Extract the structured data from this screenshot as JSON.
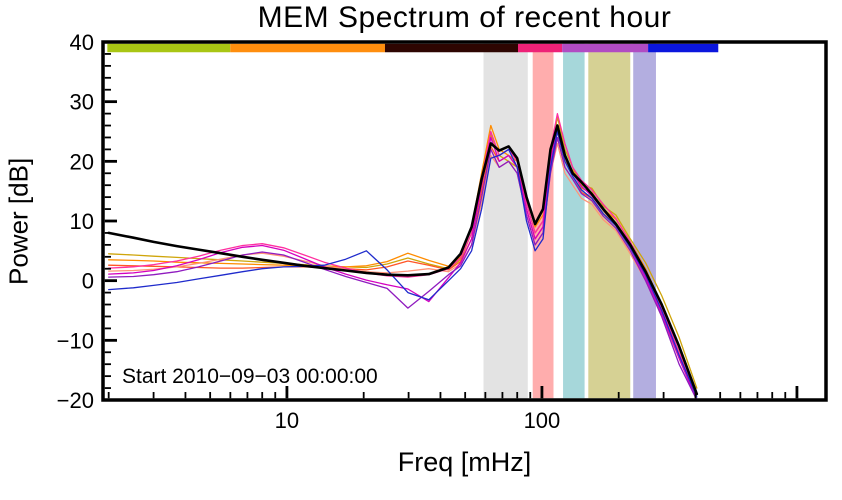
{
  "chart_data": {
    "type": "line",
    "title": "MEM Spectrum of recent hour",
    "xlabel": "Freq [mHz]",
    "ylabel": "Power [dB]",
    "annotation": "Start 2010−09−03 00:00:00",
    "xscale": "log",
    "xlim": [
      1.9,
      1300
    ],
    "ylim": [
      -20,
      40
    ],
    "grid": false,
    "legend": "none",
    "yticks": [
      [
        40,
        "40"
      ],
      [
        30,
        "30"
      ],
      [
        20,
        "20"
      ],
      [
        10,
        "10"
      ],
      [
        0,
        "0"
      ],
      [
        -10,
        "−10"
      ],
      [
        -20,
        "−20"
      ]
    ],
    "ytick_minor_step": 2,
    "xticks": [
      [
        10,
        "10"
      ],
      [
        100,
        "100"
      ],
      [
        1000,
        ""
      ]
    ],
    "x": [
      2,
      2.5,
      3,
      3.7,
      4.5,
      5.5,
      6.7,
      8,
      9.7,
      11.7,
      14,
      17,
      20.5,
      24.7,
      29.8,
      36,
      43,
      48,
      53,
      58,
      63,
      68,
      74,
      80,
      87,
      94,
      101,
      108,
      115,
      123,
      132,
      143,
      157,
      174,
      195,
      222,
      255,
      295,
      345,
      405
    ],
    "series": [
      {
        "name": "gold",
        "color": "#cfa50a",
        "width": 1.3,
        "values": [
          4.5,
          4.3,
          4.1,
          3.9,
          3.7,
          3.5,
          3.3,
          3.1,
          2.9,
          2.7,
          2.5,
          2.3,
          2.2,
          2.8,
          3.8,
          2.8,
          2.0,
          3.5,
          8,
          16,
          24.5,
          21,
          20,
          19,
          13,
          8,
          10,
          20,
          27.5,
          22,
          19,
          16,
          15.5,
          12.5,
          11,
          7,
          3,
          -2.5,
          -9.5,
          -18
        ]
      },
      {
        "name": "orange",
        "color": "#ff8c00",
        "width": 1.3,
        "values": [
          3.5,
          3.4,
          3.3,
          3.1,
          3,
          2.9,
          2.8,
          2.7,
          2.6,
          2.5,
          2.4,
          2.3,
          2.5,
          3.2,
          4.6,
          3.4,
          2.4,
          4,
          9,
          18,
          26,
          22,
          21,
          20,
          14,
          9,
          11,
          21,
          25,
          20,
          18.5,
          15.5,
          14.8,
          12,
          10.3,
          6.5,
          2,
          -4,
          -11,
          -19
        ]
      },
      {
        "name": "vermilion",
        "color": "#ff5526",
        "width": 1.3,
        "values": [
          2.6,
          2.5,
          2.4,
          2.3,
          2.2,
          2.1,
          2.1,
          2.2,
          2.3,
          2.3,
          2.2,
          2,
          1.8,
          2.3,
          3.3,
          2.6,
          1.8,
          3.2,
          7,
          15,
          22.5,
          20,
          21,
          19,
          12,
          7,
          9,
          19,
          24,
          19,
          17,
          14.8,
          13.8,
          11.2,
          9.4,
          5.5,
          1,
          -5,
          -12,
          -20
        ]
      },
      {
        "name": "salmon",
        "color": "#ff9478",
        "width": 1.3,
        "values": [
          1.6,
          1.7,
          1.9,
          2.3,
          2.9,
          3.6,
          4.3,
          4.6,
          4.1,
          3.3,
          2.5,
          1.9,
          1.5,
          1.3,
          1.6,
          2,
          1.5,
          2.8,
          6,
          13,
          21,
          19,
          20,
          18,
          11,
          6,
          8,
          18,
          23,
          18,
          16,
          13.8,
          12.8,
          10.2,
          8.4,
          4.5,
          0,
          -6,
          -13,
          -20
        ]
      },
      {
        "name": "hotpink",
        "color": "#ff2fa0",
        "width": 1.3,
        "values": [
          2.1,
          2.3,
          2.7,
          3.3,
          4.1,
          5.1,
          5.9,
          6.2,
          5.5,
          4.3,
          3.1,
          2.1,
          1.3,
          0.8,
          0.6,
          1,
          2,
          3.8,
          8,
          17,
          25,
          21,
          22,
          20,
          13,
          8,
          10,
          22,
          28,
          23,
          19,
          16.8,
          15.2,
          12.8,
          10.4,
          6.5,
          1.5,
          -4.5,
          -12,
          -19
        ]
      },
      {
        "name": "magenta",
        "color": "#d400c0",
        "width": 1.3,
        "values": [
          1.1,
          1.3,
          1.7,
          2.5,
          3.5,
          4.7,
          5.6,
          5.9,
          5.1,
          3.7,
          2.3,
          1.1,
          0.1,
          -0.7,
          -1.4,
          -3.5,
          0.5,
          3,
          7,
          16,
          24,
          20,
          21,
          19,
          12,
          7,
          9,
          20,
          26,
          21,
          18,
          15.8,
          14.2,
          11.8,
          9.4,
          5.5,
          0.5,
          -5.5,
          -13,
          -20
        ]
      },
      {
        "name": "purple",
        "color": "#8f1bbf",
        "width": 1.3,
        "values": [
          0.6,
          0.7,
          1,
          1.5,
          2.3,
          3.3,
          4.3,
          4.8,
          4.3,
          3.1,
          1.9,
          0.7,
          -0.3,
          -1.3,
          -4.6,
          -1.8,
          1,
          2.5,
          6,
          14,
          22,
          19,
          20,
          18,
          11,
          6,
          8,
          18,
          24,
          19,
          17,
          14.6,
          13.4,
          10.8,
          8.8,
          5,
          0,
          -6,
          -14,
          -20
        ]
      },
      {
        "name": "blue",
        "color": "#1f2bcc",
        "width": 1.3,
        "values": [
          -1.5,
          -1.2,
          -0.8,
          -0.3,
          0.3,
          0.9,
          1.5,
          2,
          2.3,
          2.4,
          2.6,
          3.6,
          5,
          1.8,
          -2,
          -3.2,
          0,
          2,
          5,
          12,
          20.5,
          21,
          22,
          19,
          10,
          5,
          7,
          19,
          25,
          20,
          17.5,
          15.2,
          13.8,
          11.2,
          9.2,
          5.5,
          1,
          -5,
          -12.5,
          -19.5
        ]
      },
      {
        "name": "mean-black",
        "color": "#000000",
        "width": 2.6,
        "values": [
          8,
          7.2,
          6.5,
          5.8,
          5.2,
          4.6,
          4,
          3.5,
          3,
          2.5,
          2.1,
          1.7,
          1.3,
          1,
          0.9,
          1.1,
          2.2,
          4.5,
          9,
          17,
          23,
          21.8,
          22.5,
          20.5,
          14,
          9.5,
          12,
          22,
          26,
          21,
          18,
          16.5,
          14.5,
          12,
          9.5,
          6,
          1.5,
          -4,
          -11,
          -19
        ]
      }
    ],
    "bands": [
      {
        "name": "band-gray",
        "from": 59,
        "to": 88,
        "color": "#e3e3e3"
      },
      {
        "name": "band-pink",
        "from": 92,
        "to": 111,
        "color": "#ffadad"
      },
      {
        "name": "band-cyan",
        "from": 121,
        "to": 147,
        "color": "#a6d7da"
      },
      {
        "name": "band-khaki",
        "from": 152,
        "to": 222,
        "color": "#d6d194"
      },
      {
        "name": "band-lavender",
        "from": 228,
        "to": 280,
        "color": "#b3aee0"
      }
    ],
    "top_strip": [
      {
        "name": "strip-yellowgreen",
        "from": 0.006,
        "to": 0.176,
        "color": "#a9c614"
      },
      {
        "name": "strip-orange",
        "from": 0.176,
        "to": 0.39,
        "color": "#ff8e0e"
      },
      {
        "name": "strip-darkmaroon",
        "from": 0.39,
        "to": 0.574,
        "color": "#2e0602"
      },
      {
        "name": "strip-pink",
        "from": 0.574,
        "to": 0.635,
        "color": "#ee2277"
      },
      {
        "name": "strip-purple",
        "from": 0.635,
        "to": 0.754,
        "color": "#b14cc3"
      },
      {
        "name": "strip-blue",
        "from": 0.754,
        "to": 0.851,
        "color": "#0b16dd"
      }
    ]
  }
}
